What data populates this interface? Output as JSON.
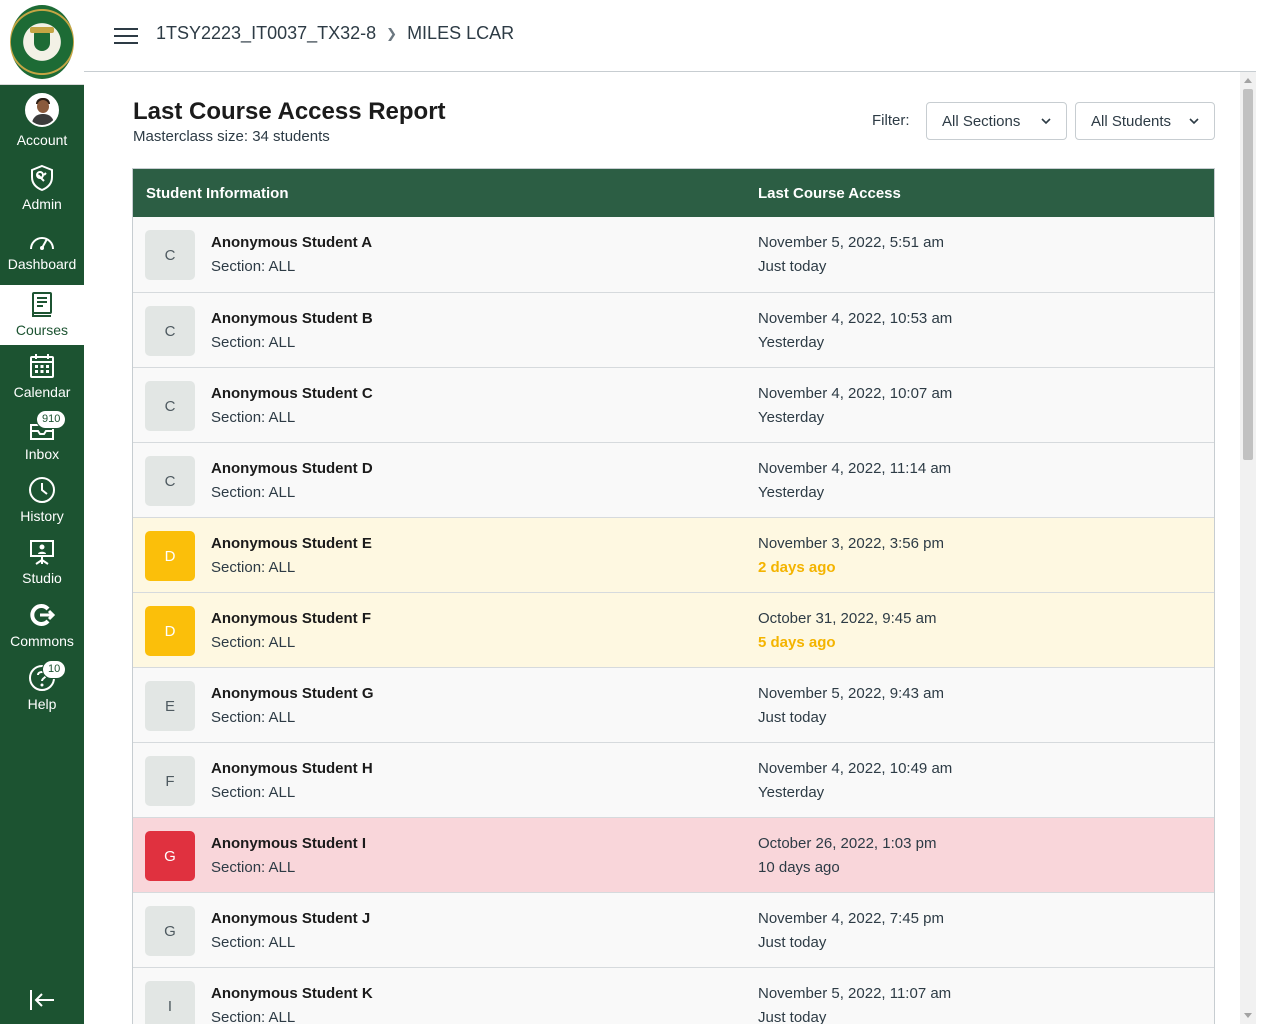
{
  "nav": {
    "items": [
      {
        "key": "account",
        "label": "Account",
        "icon": "user-avatar-icon"
      },
      {
        "key": "admin",
        "label": "Admin",
        "icon": "shield-icon"
      },
      {
        "key": "dashboard",
        "label": "Dashboard",
        "icon": "dashboard-icon"
      },
      {
        "key": "courses",
        "label": "Courses",
        "icon": "book-icon"
      },
      {
        "key": "calendar",
        "label": "Calendar",
        "icon": "calendar-icon"
      },
      {
        "key": "inbox",
        "label": "Inbox",
        "icon": "inbox-icon",
        "badge": "910"
      },
      {
        "key": "history",
        "label": "History",
        "icon": "clock-icon"
      },
      {
        "key": "studio",
        "label": "Studio",
        "icon": "studio-icon"
      },
      {
        "key": "commons",
        "label": "Commons",
        "icon": "commons-icon"
      },
      {
        "key": "help",
        "label": "Help",
        "icon": "help-icon",
        "badge": "10"
      }
    ]
  },
  "header": {
    "breadcrumb": [
      "1TSY2223_IT0037_TX32-8",
      "MILES LCAR"
    ]
  },
  "report": {
    "title": "Last Course Access Report",
    "subtitle": "Masterclass size: 34 students",
    "filter_label": "Filter:",
    "sections_select": "All Sections",
    "students_select": "All Students"
  },
  "table": {
    "col_student": "Student Information",
    "col_access": "Last Course Access",
    "rows": [
      {
        "grade": "C",
        "name": "Anonymous Student A",
        "section": "Section: ALL",
        "date": "November 5, 2022, 5:51 am",
        "relative": "Just today",
        "status": "normal"
      },
      {
        "grade": "C",
        "name": "Anonymous Student B",
        "section": "Section: ALL",
        "date": "November 4, 2022, 10:53 am",
        "relative": "Yesterday",
        "status": "normal"
      },
      {
        "grade": "C",
        "name": "Anonymous Student C",
        "section": "Section: ALL",
        "date": "November 4, 2022, 10:07 am",
        "relative": "Yesterday",
        "status": "normal"
      },
      {
        "grade": "C",
        "name": "Anonymous Student D",
        "section": "Section: ALL",
        "date": "November 4, 2022, 11:14 am",
        "relative": "Yesterday",
        "status": "normal"
      },
      {
        "grade": "D",
        "name": "Anonymous Student E",
        "section": "Section: ALL",
        "date": "November 3, 2022, 3:56 pm",
        "relative": "2 days ago",
        "status": "warn"
      },
      {
        "grade": "D",
        "name": "Anonymous Student F",
        "section": "Section: ALL",
        "date": "October 31, 2022, 9:45 am",
        "relative": "5 days ago",
        "status": "warn"
      },
      {
        "grade": "E",
        "name": "Anonymous Student G",
        "section": "Section: ALL",
        "date": "November 5, 2022, 9:43 am",
        "relative": "Just today",
        "status": "normal"
      },
      {
        "grade": "F",
        "name": "Anonymous Student H",
        "section": "Section: ALL",
        "date": "November 4, 2022, 10:49 am",
        "relative": "Yesterday",
        "status": "normal"
      },
      {
        "grade": "G",
        "name": "Anonymous Student I",
        "section": "Section: ALL",
        "date": "October 26, 2022, 1:03 pm",
        "relative": "10 days ago",
        "status": "danger"
      },
      {
        "grade": "G",
        "name": "Anonymous Student J",
        "section": "Section: ALL",
        "date": "November 4, 2022, 7:45 pm",
        "relative": "Just today",
        "status": "normal"
      },
      {
        "grade": "I",
        "name": "Anonymous Student K",
        "section": "Section: ALL",
        "date": "November 5, 2022, 11:07 am",
        "relative": "Just today",
        "status": "normal"
      }
    ]
  },
  "colors": {
    "nav_bg": "#1c5331",
    "table_header": "#2c5e44",
    "warn_row": "#fef8e1",
    "danger_row": "#f9d6da",
    "grade_d": "#fbbf0a",
    "grade_g": "#e0313f"
  }
}
